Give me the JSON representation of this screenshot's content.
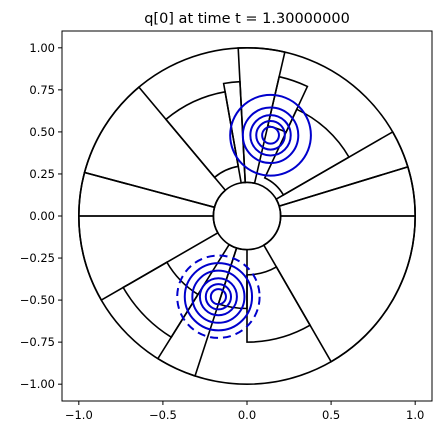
{
  "chart_data": {
    "type": "contour",
    "title": "q[0] at time t =     1.30000000",
    "xlim": [
      -1.1,
      1.1
    ],
    "ylim": [
      -1.1,
      1.1
    ],
    "xticks": [
      "−1.0",
      "−0.5",
      "0.0",
      "0.5",
      "1.0"
    ],
    "xtick_values": [
      -1.0,
      -0.5,
      0.0,
      0.5,
      1.0
    ],
    "yticks": [
      "1.00",
      "0.75",
      "0.50",
      "0.25",
      "0.00",
      "−0.25",
      "−0.50",
      "−0.75",
      "−1.00"
    ],
    "ytick_values": [
      1.0,
      0.75,
      0.5,
      0.25,
      0.0,
      -0.25,
      -0.5,
      -0.75,
      -1.0
    ],
    "grid": false,
    "domain": {
      "outer_radius": 1.0,
      "inner_radius": 0.2
    },
    "patches": [
      {
        "r": [
          0.2,
          1.0
        ],
        "theta_deg": [
          0,
          17
        ]
      },
      {
        "r": [
          0.2,
          1.0
        ],
        "theta_deg": [
          17,
          30
        ]
      },
      {
        "r": [
          0.25,
          0.7
        ],
        "theta_deg": [
          30,
          65
        ]
      },
      {
        "r": [
          0.55,
          0.85
        ],
        "theta_deg": [
          65,
          77
        ]
      },
      {
        "r": [
          0.2,
          1.0
        ],
        "theta_deg": [
          77,
          93
        ]
      },
      {
        "r": [
          0.2,
          0.8
        ],
        "theta_deg": [
          93,
          100
        ]
      },
      {
        "r": [
          0.3,
          0.75
        ],
        "theta_deg": [
          100,
          130
        ]
      },
      {
        "r": [
          0.2,
          1.0
        ],
        "theta_deg": [
          130,
          165
        ]
      },
      {
        "r": [
          0.2,
          1.0
        ],
        "theta_deg": [
          165,
          180
        ]
      },
      {
        "r": [
          0.2,
          1.0
        ],
        "theta_deg": [
          180,
          210
        ]
      },
      {
        "r": [
          0.55,
          0.85
        ],
        "theta_deg": [
          210,
          238
        ]
      },
      {
        "r": [
          0.2,
          1.0
        ],
        "theta_deg": [
          238,
          252
        ]
      },
      {
        "r": [
          0.2,
          0.55
        ],
        "theta_deg": [
          252,
          270
        ]
      },
      {
        "r": [
          0.35,
          0.75
        ],
        "theta_deg": [
          270,
          300
        ]
      },
      {
        "r": [
          0.2,
          1.0
        ],
        "theta_deg": [
          300,
          360
        ]
      }
    ],
    "series": [
      {
        "center": [
          0.14,
          0.48
        ],
        "levels": [
          {
            "r": 0.05,
            "style": "solid"
          },
          {
            "r": 0.085,
            "style": "solid"
          },
          {
            "r": 0.12,
            "style": "solid"
          },
          {
            "r": 0.165,
            "style": "solid"
          },
          {
            "r": 0.24,
            "style": "solid"
          }
        ]
      },
      {
        "center": [
          -0.17,
          -0.48
        ],
        "levels": [
          {
            "r": 0.045,
            "style": "solid"
          },
          {
            "r": 0.075,
            "style": "solid"
          },
          {
            "r": 0.11,
            "style": "solid"
          },
          {
            "r": 0.155,
            "style": "solid"
          },
          {
            "r": 0.2,
            "style": "solid"
          },
          {
            "r": 0.245,
            "style": "dashed"
          }
        ]
      }
    ],
    "colors": {
      "contour": "#0000cc",
      "mesh": "#000000"
    }
  }
}
